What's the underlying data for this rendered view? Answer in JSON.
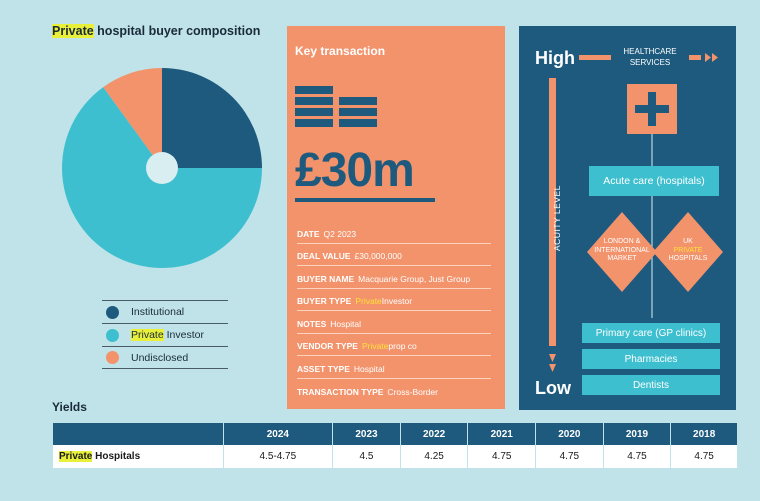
{
  "pie": {
    "title_highlight": "Private",
    "title_rest": " hospital buyer composition"
  },
  "legend": [
    {
      "pre": "",
      "hl": "",
      "post": "Institutional",
      "color": "#1e5a7e"
    },
    {
      "pre": "",
      "hl": "Private",
      "post": " Investor",
      "color": "#3dbfcf"
    },
    {
      "pre": "",
      "hl": "",
      "post": "Undisclosed",
      "color": "#f2936c"
    }
  ],
  "chart_data": [
    {
      "type": "pie",
      "title": "Private hospital buyer composition",
      "categories": [
        "Institutional",
        "Private Investor",
        "Undisclosed"
      ],
      "values": [
        25,
        65,
        10
      ],
      "colors": [
        "#1e5a7e",
        "#3dbfcf",
        "#f2936c"
      ]
    },
    {
      "type": "table",
      "title": "Yields",
      "columns": [
        "2024",
        "2023",
        "2022",
        "2021",
        "2020",
        "2019",
        "2018"
      ],
      "rows": [
        {
          "label": "Private Hospitals",
          "values": [
            "4.5-4.75",
            "4.5",
            "4.25",
            "4.75",
            "4.75",
            "4.75",
            "4.75"
          ]
        }
      ]
    }
  ],
  "card": {
    "title": "Key transaction",
    "amount": "£30m",
    "details": [
      {
        "key": "DATE",
        "pre": "Q2 2023",
        "hl": "",
        "post": ""
      },
      {
        "key": "DEAL VALUE",
        "pre": "£30,000,000",
        "hl": "",
        "post": ""
      },
      {
        "key": "BUYER NAME",
        "pre": "Macquarie Group, Just Group",
        "hl": "",
        "post": ""
      },
      {
        "key": "BUYER TYPE",
        "pre": "",
        "hl": "Private",
        "post": " Investor"
      },
      {
        "key": "NOTES",
        "pre": "Hospital",
        "hl": "",
        "post": ""
      },
      {
        "key": "VENDOR TYPE",
        "pre": "",
        "hl": "Private",
        "post": " prop co"
      },
      {
        "key": "ASSET TYPE",
        "pre": "Hospital",
        "hl": "",
        "post": ""
      },
      {
        "key": "TRANSACTION TYPE",
        "pre": "Cross-Border",
        "hl": "",
        "post": ""
      }
    ]
  },
  "panel": {
    "high": "High",
    "low": "Low",
    "healthcare_services": "HEALTHCARE SERVICES",
    "acuity_level": "ACUITY LEVEL",
    "acute_care": "Acute care (hospitals)",
    "london": "LONDON & INTERNATIONAL MARKET",
    "uk_pre": "UK",
    "uk_hl": "PRIVATE",
    "uk_post": "HOSPITALS",
    "primary_care": "Primary care (GP clinics)",
    "pharmacies": "Pharmacies",
    "dentists": "Dentists"
  },
  "yields": {
    "title": "Yields",
    "columns": [
      "",
      "2024",
      "2023",
      "2022",
      "2021",
      "2020",
      "2019",
      "2018"
    ],
    "row_label_hl": "Private",
    "row_label_rest": " Hospitals",
    "values": [
      "4.5-4.75",
      "4.5",
      "4.25",
      "4.75",
      "4.75",
      "4.75",
      "4.75"
    ]
  }
}
